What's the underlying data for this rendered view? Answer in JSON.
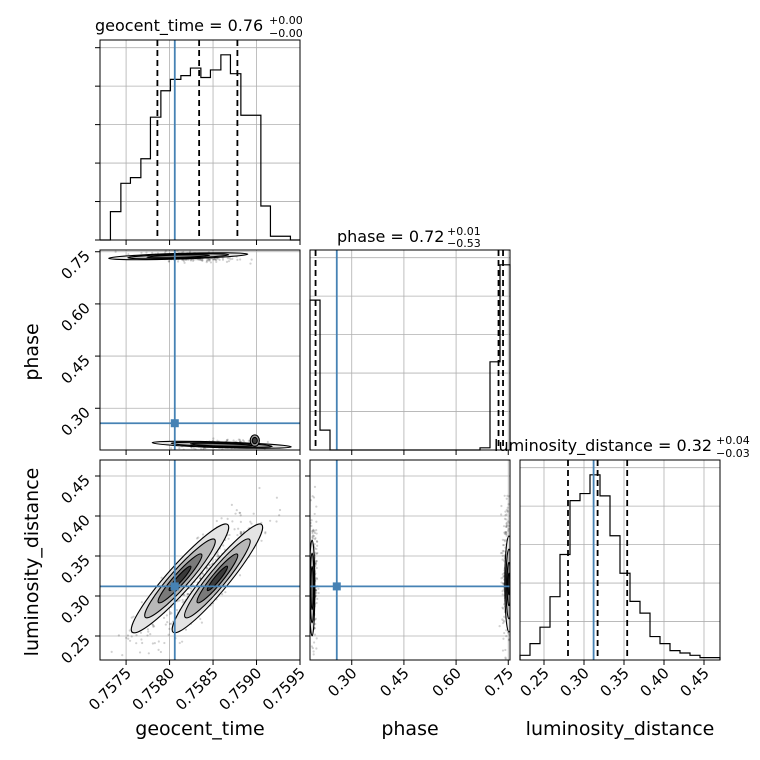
{
  "chart_data": {
    "type": "corner",
    "colors": {
      "truth": "#4682b4",
      "hist": "#000000",
      "grid": "#b0b0b0",
      "density": "#000000"
    },
    "parameters": [
      {
        "name": "geocent_time",
        "range": [
          0.7572,
          0.7595
        ],
        "ticks": [
          "0.7575",
          "0.7580",
          "0.7585",
          "0.7590",
          "0.7595"
        ],
        "tick_values": [
          0.7575,
          0.758,
          0.7585,
          0.759,
          0.7595
        ],
        "truth": 0.75806,
        "quantiles": [
          0.75786,
          0.75834,
          0.75878
        ],
        "title_main": "geocent_time = 0.76",
        "title_sup": "+0.00",
        "title_sub": "−0.00",
        "hist_edges": [
          0.7572,
          0.75732,
          0.75744,
          0.75755,
          0.75767,
          0.75778,
          0.7579,
          0.75801,
          0.75813,
          0.75824,
          0.75836,
          0.75847,
          0.75859,
          0.7587,
          0.75882,
          0.75893,
          0.75905,
          0.75916,
          0.75928,
          0.75939,
          0.7595
        ],
        "hist_counts": [
          0,
          15,
          30,
          33,
          43,
          65,
          79,
          85,
          87,
          91,
          86,
          90,
          98,
          88,
          66,
          66,
          18,
          2,
          2,
          0
        ]
      },
      {
        "name": "phase",
        "range": [
          0.18,
          0.755
        ],
        "ticks": [
          "0.30",
          "0.45",
          "0.60",
          "0.75"
        ],
        "tick_values": [
          0.3,
          0.45,
          0.6,
          0.75
        ],
        "truth": 0.257,
        "quantiles": [
          0.196,
          0.722,
          0.735
        ],
        "title_main": "phase = 0.72",
        "title_sup": "+0.01",
        "title_sub": "−0.53",
        "hist_edges": [
          0.18,
          0.2088,
          0.2375,
          0.2663,
          0.295,
          0.3238,
          0.3525,
          0.3813,
          0.41,
          0.4388,
          0.4675,
          0.4963,
          0.525,
          0.5538,
          0.5825,
          0.6113,
          0.64,
          0.6688,
          0.6975,
          0.7263,
          0.755
        ],
        "hist_counts": [
          68,
          9,
          0,
          0,
          0,
          0,
          0,
          0,
          0,
          0,
          0,
          0,
          0,
          0,
          0,
          0,
          0,
          1,
          40,
          84
        ]
      },
      {
        "name": "luminosity_distance",
        "range": [
          0.22,
          0.47
        ],
        "ticks": [
          "0.25",
          "0.30",
          "0.35",
          "0.40",
          "0.45"
        ],
        "tick_values": [
          0.25,
          0.3,
          0.35,
          0.4,
          0.45
        ],
        "truth": 0.312,
        "quantiles": [
          0.28,
          0.317,
          0.354
        ],
        "title_main": "luminosity_distance = 0.32",
        "title_sup": "+0.04",
        "title_sub": "−0.03",
        "hist_edges": [
          0.22,
          0.2325,
          0.245,
          0.2575,
          0.27,
          0.2825,
          0.295,
          0.3075,
          0.32,
          0.3325,
          0.345,
          0.3575,
          0.37,
          0.3825,
          0.395,
          0.4075,
          0.42,
          0.4325,
          0.445,
          0.4575,
          0.47
        ],
        "hist_counts": [
          2,
          7,
          14,
          27,
          45,
          68,
          71,
          79,
          70,
          53,
          37,
          25,
          20,
          10,
          7,
          4,
          3,
          2,
          1,
          1
        ]
      }
    ]
  }
}
